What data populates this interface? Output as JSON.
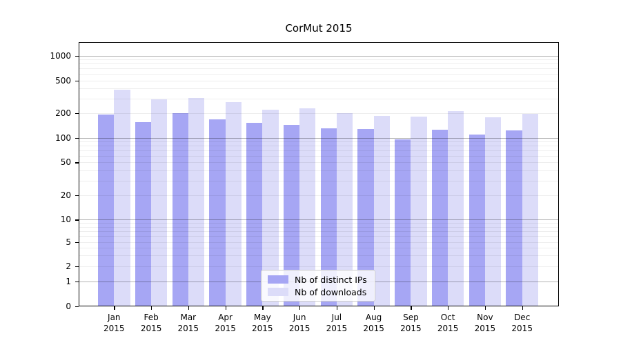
{
  "title": "CorMut 2015",
  "colors": {
    "distinct_ips": "#a6a6f4",
    "downloads": "#dcdcf9",
    "major_grid": "rgba(0,0,0,0.30)",
    "minor_grid": "rgba(0,0,0,0.065)",
    "axis": "#000000",
    "legend_bg": "rgba(255,255,255,0.82)",
    "legend_border": "#cbcbcb"
  },
  "legend": {
    "position": "lower center",
    "items": [
      {
        "label": "Nb of distinct IPs",
        "color_key": "distinct_ips"
      },
      {
        "label": "Nb of downloads",
        "color_key": "downloads"
      }
    ]
  },
  "chart_data": {
    "type": "bar",
    "title": "CorMut 2015",
    "categories": [
      "Jan 2015",
      "Feb 2015",
      "Mar 2015",
      "Apr 2015",
      "May 2015",
      "Jun 2015",
      "Jul 2015",
      "Aug 2015",
      "Sep 2015",
      "Oct 2015",
      "Nov 2015",
      "Dec 2015"
    ],
    "series": [
      {
        "name": "Nb of distinct IPs",
        "values": [
          193,
          154,
          199,
          166,
          153,
          143,
          129,
          127,
          96,
          125,
          110,
          122
        ]
      },
      {
        "name": "Nb of downloads",
        "values": [
          385,
          295,
          305,
          270,
          219,
          230,
          198,
          183,
          181,
          213,
          177,
          195
        ]
      }
    ],
    "yscale": "symlog",
    "yticks": [
      0,
      1,
      2,
      5,
      10,
      20,
      50,
      100,
      200,
      500,
      1000
    ],
    "ylim": [
      0,
      2000
    ],
    "xlabel": "",
    "ylabel": "",
    "grid": true,
    "legend_position": "lower center"
  }
}
